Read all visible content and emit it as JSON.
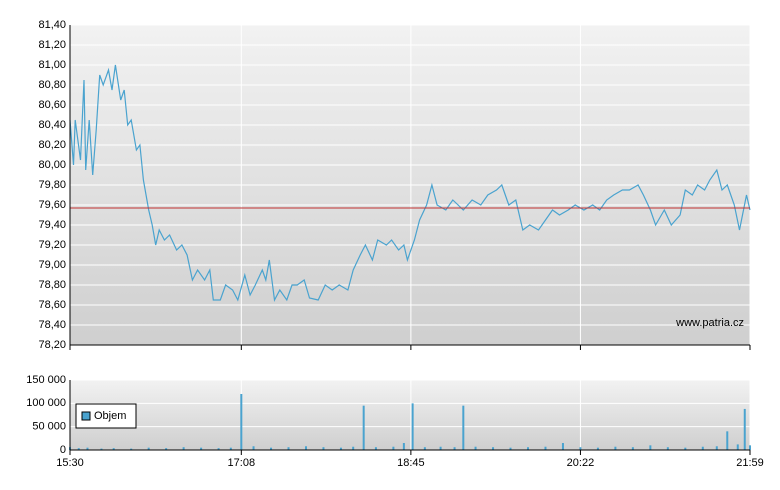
{
  "chart_data": [
    {
      "type": "line",
      "color": "#4aa3cf",
      "reference_line": 79.57,
      "reference_color": "#c03030",
      "watermark": "www.patria.cz",
      "xlim": [
        930,
        1319
      ],
      "xticks": [
        930,
        1028,
        1125,
        1222,
        1319
      ],
      "ylim": [
        78.2,
        81.4
      ],
      "yticks": [
        {
          "value": 78.2,
          "label": "78,20"
        },
        {
          "value": 78.4,
          "label": "78,40"
        },
        {
          "value": 78.6,
          "label": "78,60"
        },
        {
          "value": 78.8,
          "label": "78,80"
        },
        {
          "value": 79.0,
          "label": "79,00"
        },
        {
          "value": 79.2,
          "label": "79,20"
        },
        {
          "value": 79.4,
          "label": "79,40"
        },
        {
          "value": 79.6,
          "label": "79,60"
        },
        {
          "value": 79.8,
          "label": "79,80"
        },
        {
          "value": 80.0,
          "label": "80,00"
        },
        {
          "value": 80.2,
          "label": "80,20"
        },
        {
          "value": 80.4,
          "label": "80,40"
        },
        {
          "value": 80.6,
          "label": "80,60"
        },
        {
          "value": 80.8,
          "label": "80,80"
        },
        {
          "value": 81.0,
          "label": "81,00"
        },
        {
          "value": 81.2,
          "label": "81,20"
        },
        {
          "value": 81.4,
          "label": "81,40"
        }
      ],
      "grid": true,
      "x": [
        930,
        932,
        933,
        936,
        938,
        939,
        941,
        943,
        945,
        947,
        949,
        952,
        954,
        956,
        959,
        961,
        963,
        965,
        968,
        970,
        972,
        975,
        977,
        979,
        981,
        984,
        987,
        991,
        994,
        997,
        1000,
        1003,
        1007,
        1010,
        1012,
        1016,
        1019,
        1023,
        1026,
        1030,
        1033,
        1036,
        1040,
        1042,
        1044,
        1047,
        1050,
        1054,
        1057,
        1060,
        1064,
        1067,
        1072,
        1076,
        1080,
        1084,
        1089,
        1092,
        1096,
        1099,
        1103,
        1106,
        1111,
        1114,
        1118,
        1121,
        1123,
        1127,
        1130,
        1134,
        1137,
        1140,
        1145,
        1149,
        1152,
        1155,
        1160,
        1165,
        1169,
        1174,
        1177,
        1181,
        1185,
        1189,
        1193,
        1198,
        1202,
        1206,
        1210,
        1215,
        1219,
        1224,
        1229,
        1233,
        1237,
        1241,
        1246,
        1250,
        1255,
        1258,
        1262,
        1265,
        1270,
        1274,
        1279,
        1282,
        1286,
        1289,
        1293,
        1296,
        1300,
        1303,
        1306,
        1310,
        1313,
        1317,
        1319
      ],
      "values": [
        80.45,
        80.0,
        80.45,
        80.05,
        80.85,
        79.95,
        80.45,
        79.9,
        80.35,
        80.9,
        80.8,
        80.95,
        80.75,
        81.0,
        80.65,
        80.75,
        80.4,
        80.45,
        80.15,
        80.2,
        79.85,
        79.55,
        79.4,
        79.2,
        79.35,
        79.25,
        79.3,
        79.15,
        79.2,
        79.1,
        78.85,
        78.95,
        78.85,
        78.95,
        78.65,
        78.65,
        78.8,
        78.75,
        78.65,
        78.9,
        78.7,
        78.8,
        78.95,
        78.85,
        79.05,
        78.65,
        78.75,
        78.65,
        78.8,
        78.8,
        78.85,
        78.67,
        78.65,
        78.8,
        78.75,
        78.8,
        78.75,
        78.95,
        79.1,
        79.2,
        79.05,
        79.25,
        79.2,
        79.25,
        79.15,
        79.2,
        79.05,
        79.25,
        79.45,
        79.6,
        79.8,
        79.6,
        79.55,
        79.65,
        79.6,
        79.55,
        79.65,
        79.6,
        79.7,
        79.75,
        79.8,
        79.6,
        79.65,
        79.35,
        79.4,
        79.35,
        79.45,
        79.55,
        79.5,
        79.55,
        79.6,
        79.55,
        79.6,
        79.55,
        79.65,
        79.7,
        79.75,
        79.75,
        79.8,
        79.7,
        79.55,
        79.4,
        79.55,
        79.4,
        79.5,
        79.75,
        79.7,
        79.8,
        79.75,
        79.85,
        79.95,
        79.75,
        79.8,
        79.6,
        79.35,
        79.7,
        79.55
      ]
    },
    {
      "type": "bar",
      "xlim": [
        930,
        1319
      ],
      "xticks": [
        {
          "value": 930,
          "label": "15:30"
        },
        {
          "value": 1028,
          "label": "17:08"
        },
        {
          "value": 1125,
          "label": "18:45"
        },
        {
          "value": 1222,
          "label": "20:22"
        },
        {
          "value": 1319,
          "label": "21:59"
        }
      ],
      "ylim": [
        0,
        150000
      ],
      "yticks": [
        0,
        {
          "value": 50000,
          "label": "50 000"
        },
        {
          "value": 100000,
          "label": "100 000"
        },
        {
          "value": 150000,
          "label": "150 000"
        }
      ],
      "grid": true,
      "legend": "top-left",
      "x": [
        930,
        935,
        940,
        948,
        955,
        965,
        975,
        985,
        995,
        1005,
        1015,
        1022,
        1028,
        1035,
        1045,
        1055,
        1065,
        1075,
        1085,
        1092,
        1098,
        1105,
        1115,
        1121,
        1126,
        1133,
        1142,
        1150,
        1155,
        1162,
        1172,
        1182,
        1192,
        1202,
        1212,
        1222,
        1232,
        1242,
        1252,
        1262,
        1272,
        1282,
        1292,
        1300,
        1306,
        1312,
        1316,
        1319
      ],
      "series": [
        {
          "name": "Objem",
          "color": "#4aa3cf",
          "values": [
            6000,
            4000,
            5000,
            3000,
            4000,
            3000,
            5000,
            4000,
            6000,
            5000,
            4000,
            5000,
            120000,
            8000,
            5000,
            6000,
            8000,
            6000,
            5000,
            7000,
            95000,
            6000,
            7000,
            15000,
            100000,
            6000,
            7000,
            6000,
            95000,
            7000,
            6000,
            5000,
            6000,
            7000,
            15000,
            6000,
            5000,
            7000,
            6000,
            10000,
            6000,
            5000,
            7000,
            8000,
            40000,
            12000,
            88000,
            10000
          ]
        }
      ]
    }
  ]
}
